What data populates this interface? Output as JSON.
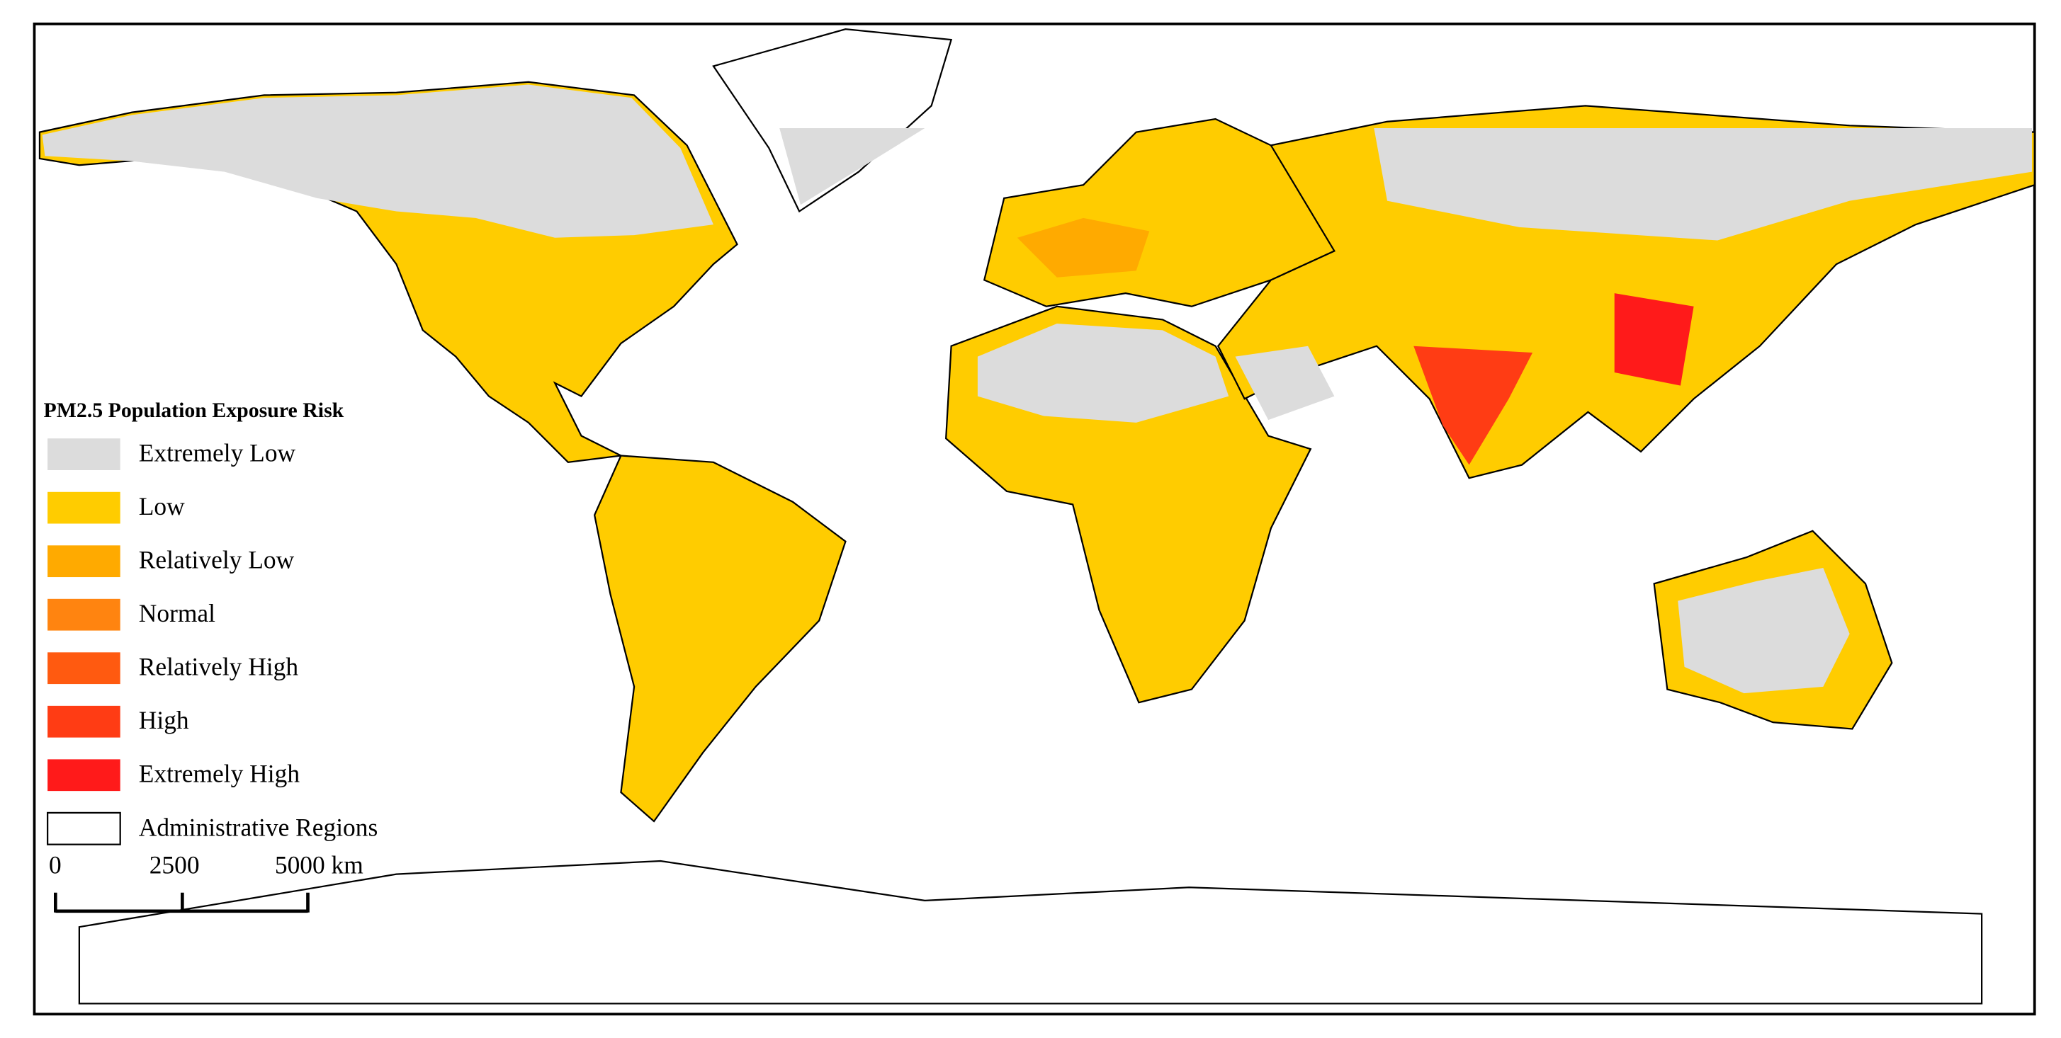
{
  "legend": {
    "title": "PM2.5 Population Exposure Risk",
    "items": [
      {
        "label": "Extremely Low",
        "color": "#dcdcdc"
      },
      {
        "label": "Low",
        "color": "#ffcc00"
      },
      {
        "label": "Relatively Low",
        "color": "#ffaa00"
      },
      {
        "label": "Normal",
        "color": "#ff8410"
      },
      {
        "label": "Relatively High",
        "color": "#ff5a10"
      },
      {
        "label": "High",
        "color": "#ff3c14"
      },
      {
        "label": "Extremely High",
        "color": "#ff1a1a"
      },
      {
        "label": "Administrative Regions",
        "color": "#ffffff"
      }
    ]
  },
  "scale_bar": {
    "labels": [
      "0",
      "2500",
      "5000 km"
    ]
  }
}
